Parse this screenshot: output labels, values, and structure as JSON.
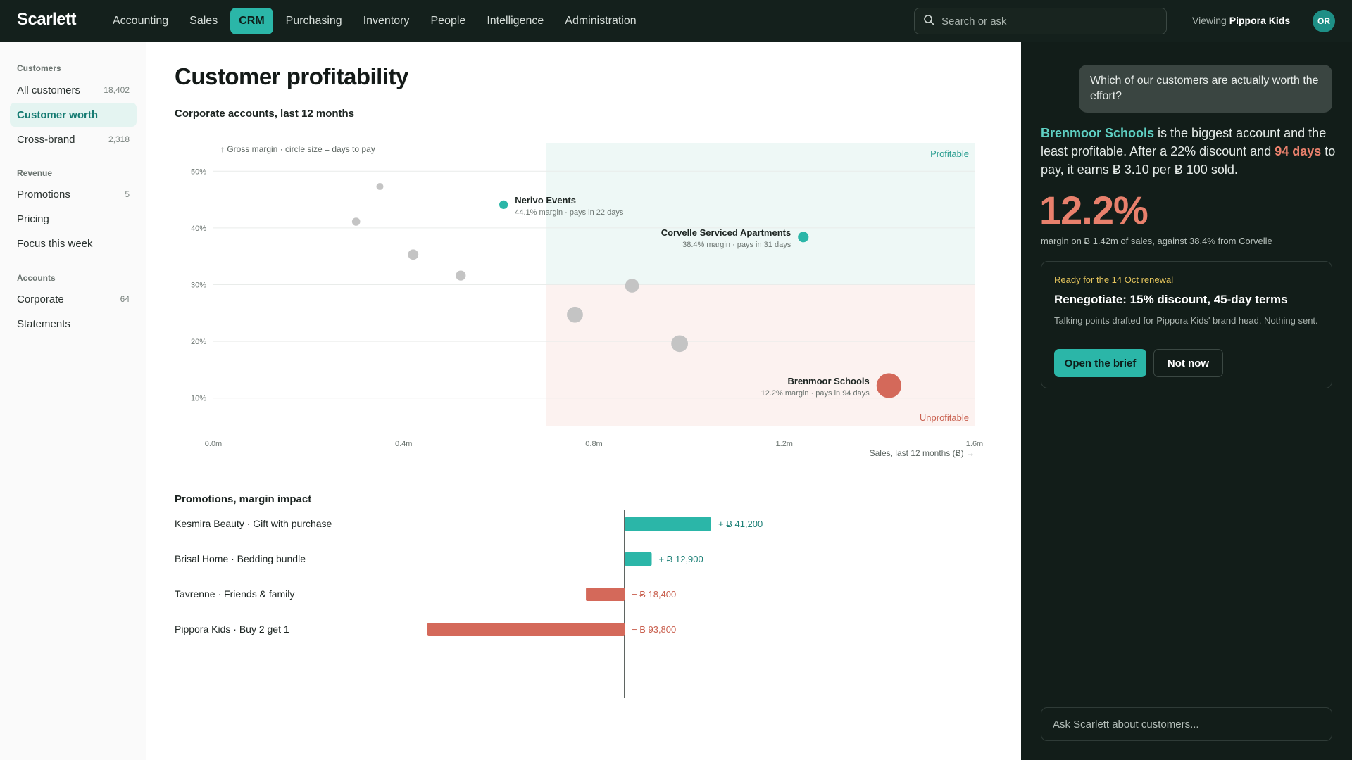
{
  "app": {
    "logo": "Scarlett"
  },
  "nav": {
    "items": [
      {
        "label": "Accounting"
      },
      {
        "label": "Sales"
      },
      {
        "label": "CRM",
        "active": true
      },
      {
        "label": "Purchasing"
      },
      {
        "label": "Inventory"
      },
      {
        "label": "People"
      },
      {
        "label": "Intelligence"
      },
      {
        "label": "Administration"
      }
    ],
    "search_placeholder": "Search or ask",
    "viewing_label": "Viewing",
    "viewing_value": "Pippora Kids",
    "avatar_initials": "OR"
  },
  "sidebar": {
    "groups": [
      {
        "label": "Customers",
        "items": [
          {
            "label": "All customers",
            "count": "18,402"
          },
          {
            "label": "Customer worth",
            "count": "",
            "active": true
          },
          {
            "label": "Cross-brand",
            "count": "2,318"
          }
        ]
      },
      {
        "label": "Revenue",
        "items": [
          {
            "label": "Promotions",
            "count": "5"
          },
          {
            "label": "Pricing",
            "count": ""
          },
          {
            "label": "Focus this week",
            "count": ""
          }
        ]
      },
      {
        "label": "Accounts",
        "items": [
          {
            "label": "Corporate",
            "count": "64"
          },
          {
            "label": "Statements",
            "count": ""
          }
        ]
      }
    ]
  },
  "main": {
    "title": "Customer profitability",
    "subtitle": "Corporate accounts, last 12 months",
    "promo_section_title": "Promotions, margin impact"
  },
  "colors": {
    "accent": "#2bb6a8",
    "negative": "#d4695a",
    "neutral_point": "#c4c4c4",
    "profitable_zone": "#eef8f6",
    "unprofitable_zone": "#fcf2f0"
  },
  "chart_data": [
    {
      "type": "scatter",
      "ylabel": "↑ Gross margin · circle size = days to pay",
      "xlabel": "Sales, last 12 months (Ƀ) →",
      "xlim": [
        0,
        1.6
      ],
      "ylim": [
        5,
        55
      ],
      "x_ticks": [
        0,
        0.4,
        0.8,
        1.2,
        1.6
      ],
      "x_tick_labels": [
        "0.0m",
        "0.4m",
        "0.8m",
        "1.2m",
        "1.6m"
      ],
      "y_ticks": [
        10,
        20,
        30,
        40,
        50
      ],
      "y_tick_labels": [
        "10%",
        "20%",
        "30%",
        "40%",
        "50%"
      ],
      "zones": [
        {
          "label": "Profitable",
          "x_from": 0.7,
          "x_to": 1.6,
          "y_from": 30,
          "y_to": 55
        },
        {
          "label": "Unprofitable",
          "x_from": 0.7,
          "x_to": 1.6,
          "y_from": 5,
          "y_to": 30
        }
      ],
      "points": [
        {
          "x": 0.35,
          "y": 47.3,
          "days": 15
        },
        {
          "x": 0.3,
          "y": 41.1,
          "days": 20
        },
        {
          "x": 0.42,
          "y": 35.3,
          "days": 30
        },
        {
          "x": 0.52,
          "y": 31.6,
          "days": 28
        },
        {
          "x": 0.61,
          "y": 44.1,
          "days": 22,
          "name": "Nerivo Events",
          "detail": "44.1% margin · pays in 22 days",
          "highlight": true
        },
        {
          "x": 1.24,
          "y": 38.4,
          "days": 31,
          "name": "Corvelle Serviced Apartments",
          "detail": "38.4% margin · pays in 31 days",
          "highlight": true
        },
        {
          "x": 0.88,
          "y": 29.8,
          "days": 45
        },
        {
          "x": 0.76,
          "y": 24.7,
          "days": 55
        },
        {
          "x": 0.98,
          "y": 19.6,
          "days": 58
        },
        {
          "x": 1.42,
          "y": 12.2,
          "days": 94,
          "name": "Brenmoor Schools",
          "detail": "12.2% margin · pays in 94 days",
          "negative": true
        }
      ]
    },
    {
      "type": "bar",
      "orientation": "horizontal-diverging",
      "categories": [
        "Kesmira Beauty · Gift with purchase",
        "Brisal Home · Bedding bundle",
        "Tavrenne · Friends & family",
        "Pippora Kids · Buy 2 get 1"
      ],
      "values": [
        41200,
        12900,
        -18400,
        -93800
      ],
      "value_labels": [
        "+ Ƀ 41,200",
        "+ Ƀ 12,900",
        "− Ƀ 18,400",
        "− Ƀ 93,800"
      ]
    }
  ],
  "panel": {
    "question": "Which of our customers are actually worth the effort?",
    "answer_name": "Brenmoor Schools",
    "answer_part1": " is the biggest account and the least profitable. After a 22% discount and ",
    "answer_days": "94 days",
    "answer_part2": " to pay, it earns Ƀ 3.10 per Ƀ 100 sold.",
    "big_stat": "12.2%",
    "stat_caption": "margin on Ƀ 1.42m of sales, against 38.4% from Corvelle",
    "card": {
      "kicker": "Ready for the 14 Oct renewal",
      "title": "Renegotiate: 15% discount, 45-day terms",
      "body": "Talking points drafted for Pippora Kids' brand head. Nothing sent.",
      "primary_label": "Open the brief",
      "secondary_label": "Not now"
    },
    "ask_placeholder": "Ask Scarlett about customers..."
  }
}
